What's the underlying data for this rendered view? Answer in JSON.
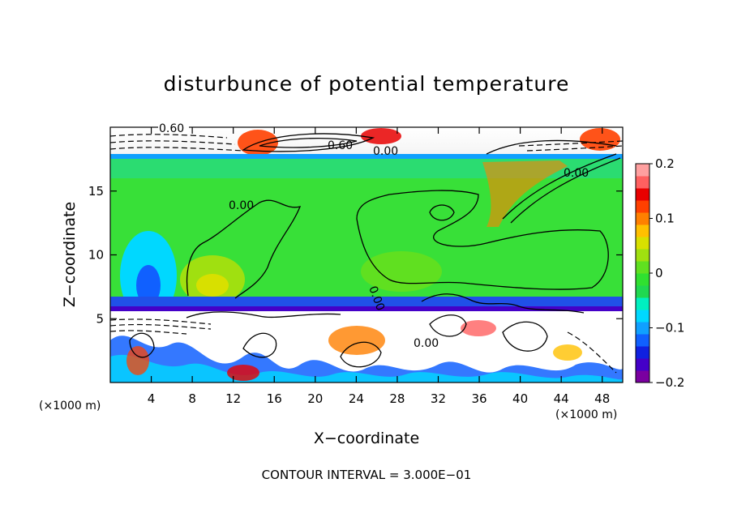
{
  "chart_data": {
    "type": "heatmap",
    "title": "disturbunce of potential temperature",
    "xlabel": "X−coordinate",
    "ylabel": "Z−coordinate",
    "x_unit_left": "(×1000 m)",
    "x_unit_right": "(×1000 m)",
    "xlim": [
      0,
      50
    ],
    "ylim": [
      0,
      20
    ],
    "x_ticks": [
      4,
      8,
      12,
      16,
      20,
      24,
      28,
      32,
      36,
      40,
      44,
      48
    ],
    "y_ticks": [
      5,
      10,
      15
    ],
    "colorbar": {
      "range": [
        -0.2,
        0.2
      ],
      "tick_labels": [
        "0.2",
        "0.1",
        "0",
        "−0.1",
        "−0.2"
      ],
      "tick_values": [
        0.2,
        0.1,
        0,
        -0.1,
        -0.2
      ],
      "colors": [
        "#7a00a0",
        "#4400c8",
        "#1020e0",
        "#1060ff",
        "#10a0ff",
        "#00d8ff",
        "#00f0c0",
        "#20d850",
        "#30e030",
        "#60e020",
        "#a0e010",
        "#d8e000",
        "#ffc000",
        "#ff8000",
        "#ff4000",
        "#e80000",
        "#ff6060",
        "#ffa0a0"
      ]
    },
    "contour_labels": [
      "0.60",
      "0.60",
      "0.00",
      "0.00",
      "0.00",
      "0.00",
      "0.00"
    ],
    "contour_interval_text": "CONTOUR INTERVAL = 3.000E−01"
  }
}
